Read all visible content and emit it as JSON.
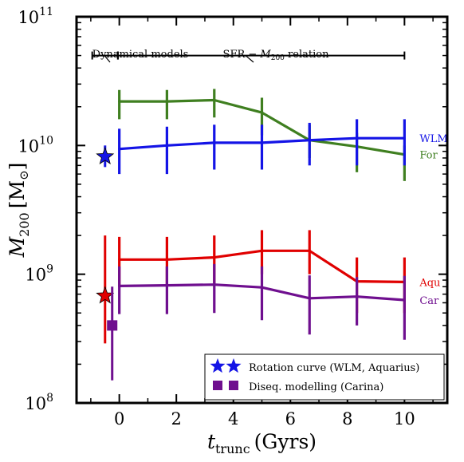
{
  "chart_data": {
    "type": "line",
    "title": "",
    "xlabel_main": "t",
    "xlabel_sub": "trunc",
    "xlabel_unit": "(Gyrs)",
    "ylabel_main": "M",
    "ylabel_sub": "200",
    "ylabel_unit": "[M",
    "ylabel_unit_close": "]",
    "ylabel_sun": "⊙",
    "xlim": [
      -1.5,
      11.5
    ],
    "ylim": [
      100000000,
      100000000000
    ],
    "yscale": "log",
    "grid": false,
    "x_ticks": [
      0,
      2,
      4,
      6,
      8,
      10
    ],
    "x_tick_labels": [
      "0",
      "2",
      "4",
      "6",
      "8",
      "10"
    ],
    "y_ticks": [
      {
        "value": 100000000,
        "base": "10",
        "exp": "8"
      },
      {
        "value": 1000000000,
        "base": "10",
        "exp": "9"
      },
      {
        "value": 10000000000,
        "base": "10",
        "exp": "10"
      },
      {
        "value": 100000000000,
        "base": "10",
        "exp": "11"
      }
    ],
    "series": [
      {
        "name": "For",
        "color": "#3f7f20",
        "x": [
          0,
          1.67,
          3.33,
          5.0,
          6.67,
          8.33,
          10.0
        ],
        "y": [
          22000000000,
          22000000000,
          22500000000,
          18000000000,
          11000000000,
          9800000000,
          8500000000
        ],
        "err_low": [
          16000000000,
          16000000000,
          16500000000,
          12000000000,
          8000000000,
          6200000000,
          5300000000
        ],
        "err_high": [
          27000000000,
          27000000000,
          27500000000,
          23500000000,
          14500000000,
          12500000000,
          10000000000
        ]
      },
      {
        "name": "WLM",
        "color": "#1414e6",
        "x": [
          0,
          1.67,
          3.33,
          5.0,
          6.67,
          8.33,
          10.0
        ],
        "y": [
          9400000000,
          10000000000,
          10500000000,
          10500000000,
          11000000000,
          11400000000,
          11400000000
        ],
        "err_low": [
          6000000000,
          6000000000,
          6500000000,
          6500000000,
          7000000000,
          7000000000,
          7000000000
        ],
        "err_high": [
          13500000000,
          14000000000,
          14500000000,
          14500000000,
          15000000000,
          16000000000,
          16000000000
        ]
      },
      {
        "name": "Aqu",
        "color": "#e00000",
        "x": [
          0,
          1.67,
          3.33,
          5.0,
          6.67,
          8.33,
          10.0
        ],
        "y": [
          1300000000,
          1300000000,
          1350000000,
          1520000000,
          1520000000,
          880000000,
          870000000
        ],
        "err_low": [
          800000000,
          800000000,
          850000000,
          1000000000,
          1000000000,
          500000000,
          500000000
        ],
        "err_high": [
          1950000000,
          1950000000,
          2000000000,
          2200000000,
          2200000000,
          1350000000,
          1350000000
        ]
      },
      {
        "name": "Car",
        "color": "#6f0f8f",
        "x": [
          0,
          1.67,
          3.33,
          5.0,
          6.67,
          8.33,
          10.0
        ],
        "y": [
          810000000,
          820000000,
          830000000,
          790000000,
          650000000,
          670000000,
          630000000
        ],
        "err_low": [
          490000000,
          490000000,
          500000000,
          440000000,
          340000000,
          400000000,
          310000000
        ],
        "err_high": [
          1150000000,
          1150000000,
          1200000000,
          1150000000,
          980000000,
          950000000,
          970000000
        ]
      }
    ],
    "point_markers": [
      {
        "series": "WLM",
        "marker": "star",
        "color": "#1414e6",
        "x": -0.5,
        "y": 8200000000,
        "err_low": 6800000000,
        "err_high": 10000000000
      },
      {
        "series": "Aqu",
        "marker": "star",
        "color": "#e00000",
        "x": -0.5,
        "y": 680000000,
        "err_low": 290000000,
        "err_high": 2000000000
      },
      {
        "series": "Car",
        "marker": "square",
        "color": "#6f0f8f",
        "x": -0.25,
        "y": 400000000,
        "err_low": 150000000,
        "err_high": 800000000
      }
    ],
    "annotations": {
      "dynamical_models": "Dynamical models",
      "sfr_relation_prefix": "SFR − ",
      "sfr_relation_m": "M",
      "sfr_relation_sub": "200",
      "sfr_relation_suffix": " relation",
      "bracket_y": 50000000000,
      "dynamical_x_range": [
        -0.95,
        -0.05
      ],
      "sfr_x_range": [
        -0.05,
        10.0
      ]
    },
    "legend": {
      "placement": "lower right",
      "entries": [
        {
          "label": "Rotation curve (WLM, Aquarius)",
          "marker": "star",
          "colors": [
            "#1414e6",
            "#1414e6"
          ]
        },
        {
          "label": "Diseq. modelling (Carina)",
          "marker": "square",
          "colors": [
            "#6f0f8f",
            "#6f0f8f"
          ]
        }
      ]
    }
  }
}
